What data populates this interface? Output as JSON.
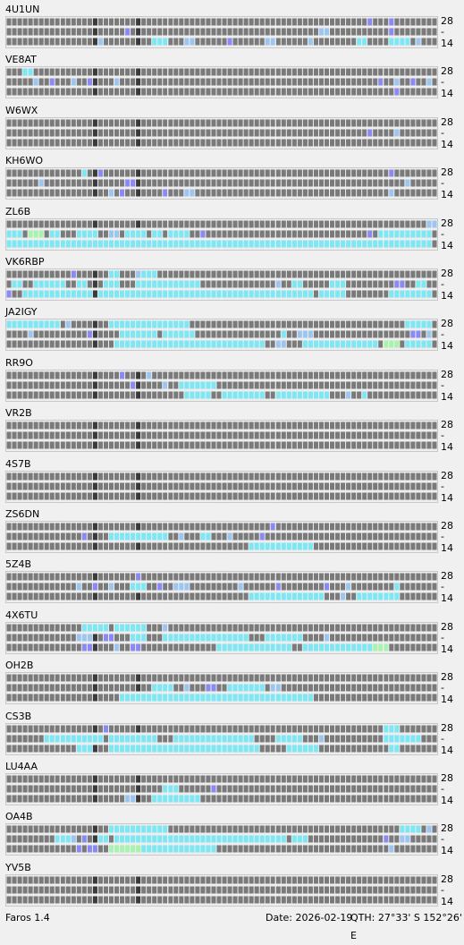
{
  "bands": {
    "top": "28",
    "middle": "-",
    "bottom": "14"
  },
  "colors": {
    "empty": "#7a7a7a",
    "dark": "#3a3a3a",
    "strong": "#7fe6f4",
    "medium": "#8a8af2",
    "weak": "#9cc6f0",
    "green": "#aaf2b0"
  },
  "beacons": [
    {
      "call": "4U1UN",
      "rows": [
        [],
        [],
        []
      ]
    },
    {
      "call": "VE8AT",
      "rows": [
        [],
        [],
        []
      ]
    },
    {
      "call": "W6WX",
      "rows": [
        [],
        [],
        []
      ]
    },
    {
      "call": "KH6WO",
      "rows": [
        [],
        [],
        []
      ]
    },
    {
      "call": "ZL6B",
      "rows": [
        [],
        [],
        []
      ]
    },
    {
      "call": "VK6RBP",
      "rows": [
        [],
        [],
        []
      ]
    },
    {
      "call": "JA2IGY",
      "rows": [
        [],
        [],
        []
      ]
    },
    {
      "call": "RR9O",
      "rows": [
        [],
        [],
        []
      ]
    },
    {
      "call": "VR2B",
      "rows": [
        [],
        [],
        []
      ]
    },
    {
      "call": "4S7B",
      "rows": [
        [],
        [],
        []
      ]
    },
    {
      "call": "ZS6DN",
      "rows": [
        [],
        [],
        []
      ]
    },
    {
      "call": "5Z4B",
      "rows": [
        [],
        [],
        []
      ]
    },
    {
      "call": "4X6TU",
      "rows": [
        [],
        [],
        []
      ]
    },
    {
      "call": "OH2B",
      "rows": [
        [],
        [],
        []
      ]
    },
    {
      "call": "CS3B",
      "rows": [
        [],
        [],
        []
      ]
    },
    {
      "call": "LU4AA",
      "rows": [
        [],
        [],
        []
      ]
    },
    {
      "call": "OA4B",
      "rows": [
        [],
        [],
        []
      ]
    },
    {
      "call": "YV5B",
      "rows": [
        [],
        [],
        []
      ]
    }
  ],
  "status": {
    "app": "Faros 1.4",
    "date": "Date: 2026-02-19",
    "qth": "QTH: 27°33' S   152°26' E"
  }
}
